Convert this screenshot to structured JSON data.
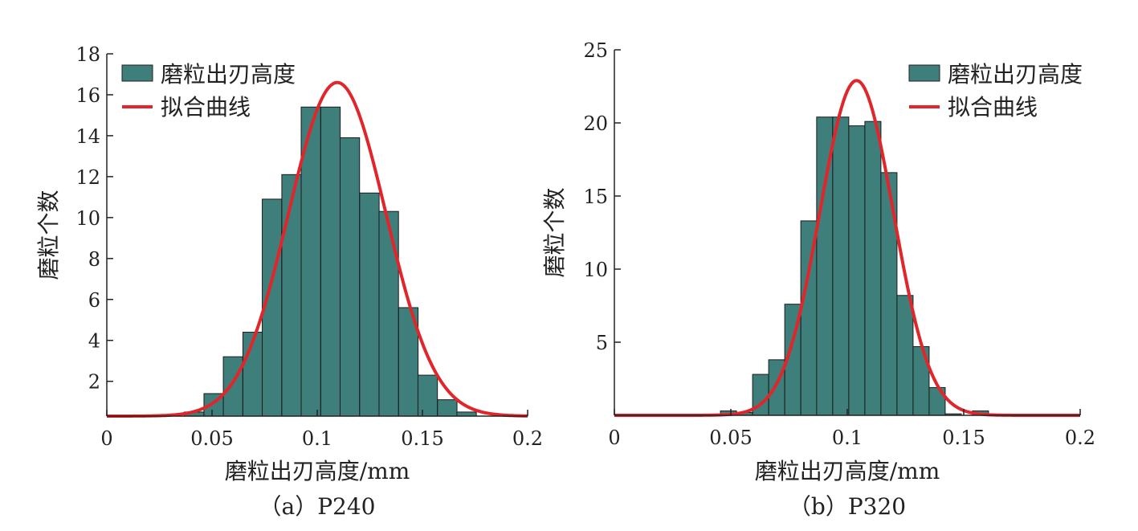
{
  "chart_data": [
    {
      "type": "bar",
      "caption": "（a）P240",
      "xlabel": "磨粒出刃高度/mm",
      "ylabel": "磨粒个数",
      "xlim": [
        0,
        0.2
      ],
      "ylim": [
        0.3,
        18
      ],
      "xticks": [
        0,
        0.05,
        0.1,
        0.15,
        0.2
      ],
      "xtick_labels": [
        "0",
        "0.05",
        "0.1",
        "0.15",
        "0.2"
      ],
      "yticks": [
        2,
        4,
        6,
        8,
        10,
        12,
        14,
        16,
        18
      ],
      "ytick_labels": [
        "2",
        "4",
        "6",
        "8",
        "10",
        "12",
        "14",
        "16",
        "18"
      ],
      "legend_position": "top-left",
      "legend": [
        {
          "label": "磨粒出刃高度",
          "kind": "bar",
          "color": "#3e7f7b"
        },
        {
          "label": "拟合曲线",
          "kind": "line",
          "color": "#e0262b"
        }
      ],
      "bin_width": 0.00925,
      "bins": [
        {
          "x": 0.0415,
          "y": 0.5
        },
        {
          "x": 0.0508,
          "y": 1.4
        },
        {
          "x": 0.06,
          "y": 3.2
        },
        {
          "x": 0.0693,
          "y": 4.4
        },
        {
          "x": 0.0785,
          "y": 10.9
        },
        {
          "x": 0.0878,
          "y": 12.1
        },
        {
          "x": 0.097,
          "y": 15.4
        },
        {
          "x": 0.1063,
          "y": 15.4
        },
        {
          "x": 0.1155,
          "y": 13.9
        },
        {
          "x": 0.1248,
          "y": 11.2
        },
        {
          "x": 0.134,
          "y": 10.3
        },
        {
          "x": 0.1433,
          "y": 5.6
        },
        {
          "x": 0.1525,
          "y": 2.3
        },
        {
          "x": 0.1618,
          "y": 1.1
        },
        {
          "x": 0.171,
          "y": 0.5
        }
      ],
      "fit": {
        "mean": 0.1095,
        "sigma": 0.0232,
        "peak": 16.6,
        "baseline": 0.3
      }
    },
    {
      "type": "bar",
      "caption": "（b）P320",
      "xlabel": "磨粒出刃高度/mm",
      "ylabel": "磨粒个数",
      "xlim": [
        0,
        0.2
      ],
      "ylim": [
        0,
        25
      ],
      "xticks": [
        0,
        0.05,
        0.1,
        0.15,
        0.2
      ],
      "xtick_labels": [
        "0",
        "0.05",
        "0.1",
        "0.15",
        "0.2"
      ],
      "yticks": [
        5,
        10,
        15,
        20,
        25
      ],
      "ytick_labels": [
        "5",
        "10",
        "15",
        "20",
        "25"
      ],
      "legend_position": "top-right",
      "legend": [
        {
          "label": "磨粒出刃高度",
          "kind": "bar",
          "color": "#3e7f7b"
        },
        {
          "label": "拟合曲线",
          "kind": "line",
          "color": "#e0262b"
        }
      ],
      "bin_width": 0.0069,
      "bins": [
        {
          "x": 0.049,
          "y": 0.3
        },
        {
          "x": 0.0559,
          "y": 0.2
        },
        {
          "x": 0.0628,
          "y": 2.8
        },
        {
          "x": 0.0697,
          "y": 3.8
        },
        {
          "x": 0.0766,
          "y": 7.6
        },
        {
          "x": 0.0835,
          "y": 13.3
        },
        {
          "x": 0.0903,
          "y": 20.4
        },
        {
          "x": 0.0972,
          "y": 20.4
        },
        {
          "x": 0.1041,
          "y": 19.8
        },
        {
          "x": 0.111,
          "y": 20.1
        },
        {
          "x": 0.1179,
          "y": 16.6
        },
        {
          "x": 0.1248,
          "y": 8.2
        },
        {
          "x": 0.1317,
          "y": 4.7
        },
        {
          "x": 0.1386,
          "y": 1.9
        },
        {
          "x": 0.1455,
          "y": 0.1
        },
        {
          "x": 0.1572,
          "y": 0.3
        }
      ],
      "fit": {
        "mean": 0.104,
        "sigma": 0.0158,
        "peak": 22.9,
        "baseline": 0.0
      }
    }
  ]
}
